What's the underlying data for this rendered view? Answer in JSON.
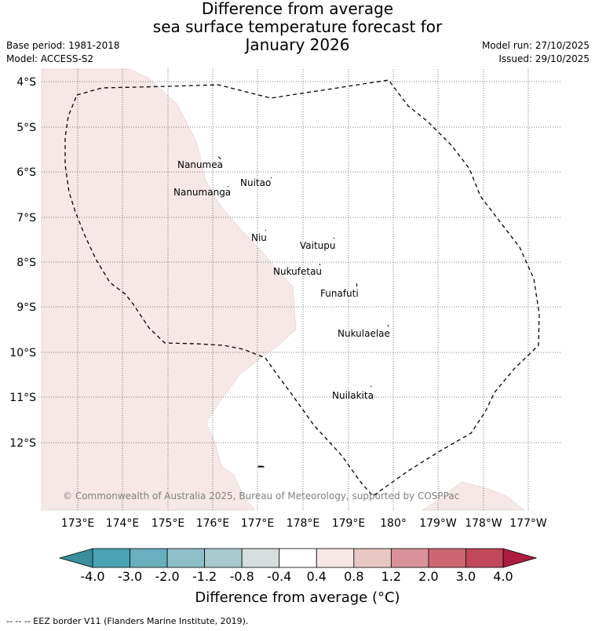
{
  "title": {
    "line1": "Difference from average",
    "line2": "sea surface temperature forecast for",
    "line3": "January 2026"
  },
  "meta_left": {
    "base_period": "Base period: 1981-2018",
    "model": "Model: ACCESS-S2"
  },
  "meta_right": {
    "model_run": "Model run: 27/10/2025",
    "issued": "Issued: 29/10/2025"
  },
  "map": {
    "lat_labels": [
      "4°S",
      "5°S",
      "6°S",
      "7°S",
      "8°S",
      "9°S",
      "10°S",
      "11°S",
      "12°S"
    ],
    "lon_labels": [
      "173°E",
      "174°E",
      "175°E",
      "176°E",
      "177°E",
      "178°E",
      "179°E",
      "180°",
      "179°W",
      "178°W",
      "177°W"
    ],
    "islands": [
      "Nanumea",
      "Nuitao",
      "Nanumanga",
      "Niu",
      "Vaitupu",
      "Nukufetau",
      "Funafuti",
      "Nukulaelae",
      "Nuilakita"
    ],
    "copyright": "© Commonwealth of Australia 2025, Bureau of Meteorology, supported by COSPPac",
    "anomaly_colors": {
      "warm_0_4_to_0_8": "#f5e8e6",
      "neutral": "#ffffff"
    }
  },
  "colorbar": {
    "tick_labels": [
      "-4.0",
      "-3.0",
      "-2.0",
      "-1.2",
      "-0.8",
      "-0.4",
      "0.4",
      "0.8",
      "1.2",
      "2.0",
      "3.0",
      "4.0"
    ],
    "colors": [
      "#3a8f9b",
      "#4aa3b4",
      "#6aafbe",
      "#8ebfc9",
      "#a9c9cc",
      "#d6dddd",
      "#ffffff",
      "#f5e8e6",
      "#e8c6c1",
      "#d9919a",
      "#cc6670",
      "#c0485a",
      "#ad1c3e"
    ],
    "title": "Difference from average (°C)"
  },
  "footnote": "--  --  -- EEZ border V11 (Flanders Marine Institute, 2019)."
}
